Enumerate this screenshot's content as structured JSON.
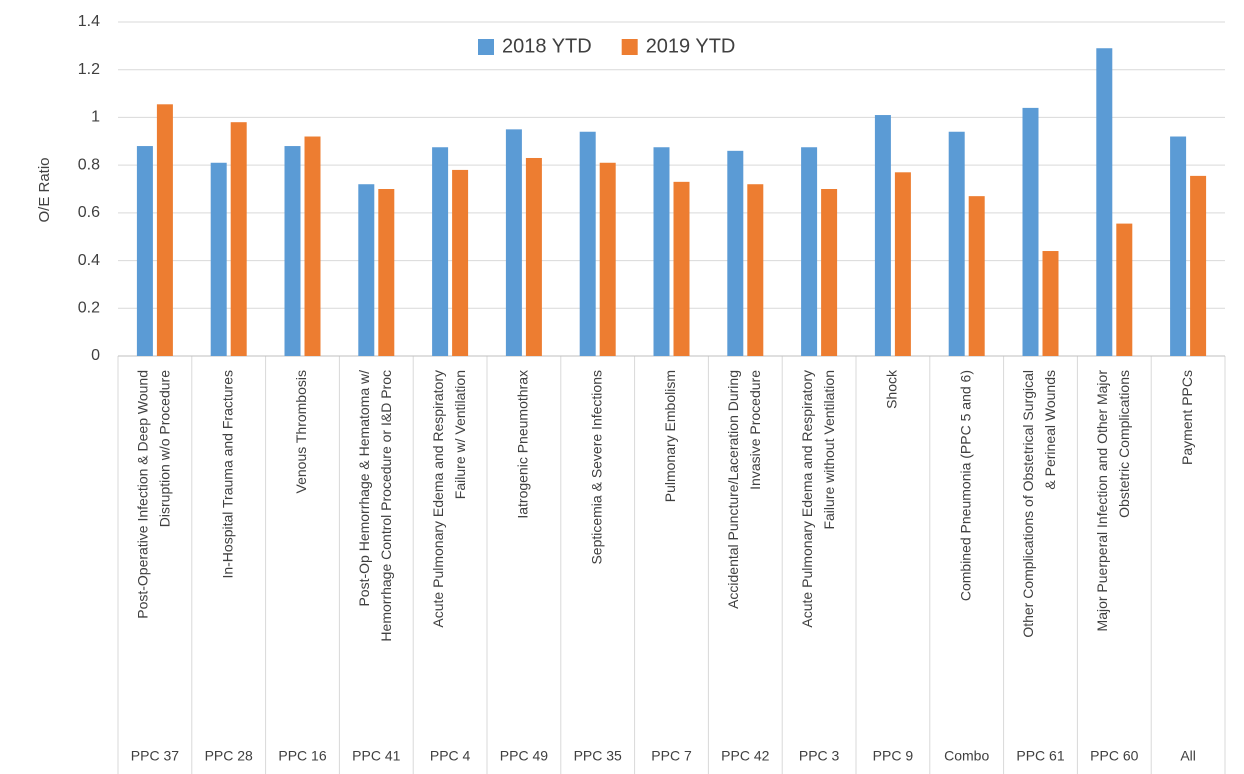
{
  "chart_data": {
    "type": "bar",
    "y_axis_label": "O/E Ratio",
    "categories": [
      "PPC 37",
      "PPC 28",
      "PPC 16",
      "PPC 41",
      "PPC 4",
      "PPC 49",
      "PPC 35",
      "PPC 7",
      "PPC 42",
      "PPC 3",
      "PPC 9",
      "Combo",
      "PPC 61",
      "PPC 60",
      "All"
    ],
    "category_descriptions": [
      [
        "Post-Operative Infection & Deep Wound",
        "Disruption w/o Procedure"
      ],
      [
        "In-Hospital Trauma and Fractures"
      ],
      [
        "Venous Thrombosis"
      ],
      [
        "Post-Op Hemorrhage & Hematoma w/",
        "Hemorrhage Control Procedure or I&D Proc"
      ],
      [
        "Acute Pulmonary Edema and Respiratory",
        "Failure w/ Ventilation"
      ],
      [
        "Iatrogenic Pneumothrax"
      ],
      [
        "Septicemia & Severe Infections"
      ],
      [
        "Pulmonary Embolism"
      ],
      [
        "Accidental Puncture/Laceration During",
        "Invasive Procedure"
      ],
      [
        "Acute Pulmonary Edema and Respiratory",
        "Failure without Ventilation"
      ],
      [
        "Shock"
      ],
      [
        "Combined Pneumonia (PPC 5 and 6)"
      ],
      [
        "Other Complications of Obstetrical Surgical",
        "& Perineal Wounds"
      ],
      [
        "Major Puerperal Infection and Other Major",
        "Obstetric Complications"
      ],
      [
        "Payment PPCs"
      ]
    ],
    "series": [
      {
        "name": "2018 YTD",
        "color": "#5b9bd5",
        "values": [
          0.88,
          0.81,
          0.88,
          0.72,
          0.875,
          0.95,
          0.94,
          0.875,
          0.86,
          0.875,
          1.01,
          0.94,
          1.04,
          1.29,
          0.92
        ]
      },
      {
        "name": "2019 YTD",
        "color": "#ed7d31",
        "values": [
          1.055,
          0.98,
          0.92,
          0.7,
          0.78,
          0.83,
          0.81,
          0.73,
          0.72,
          0.7,
          0.77,
          0.67,
          0.44,
          0.555,
          0.755
        ]
      }
    ],
    "ylim": [
      0,
      1.4
    ],
    "yticks": [
      0,
      0.2,
      0.4,
      0.6,
      0.8,
      1,
      1.2,
      1.4
    ],
    "grid": true,
    "legend": "top"
  }
}
